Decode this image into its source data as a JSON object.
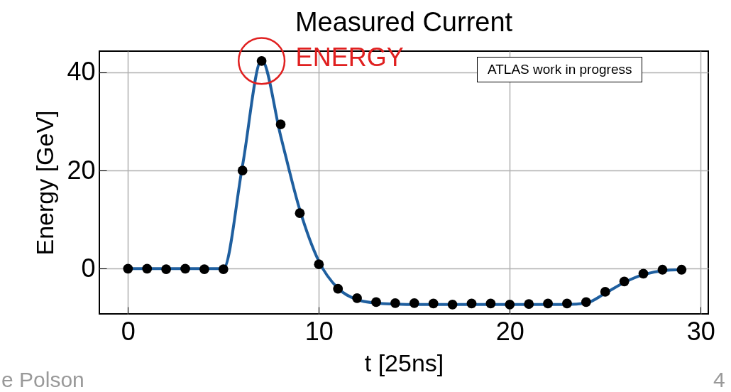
{
  "chart_data": {
    "type": "scatter",
    "title": "Measured Current",
    "xlabel": "t [25ns]",
    "ylabel": "Energy [GeV]",
    "x": [
      0,
      1,
      2,
      3,
      4,
      5,
      6,
      7,
      8,
      9,
      10,
      11,
      12,
      13,
      14,
      15,
      16,
      17,
      18,
      19,
      20,
      21,
      22,
      23,
      24,
      25,
      26,
      27,
      28,
      29
    ],
    "xlim": [
      -1.5,
      30.4
    ],
    "ylim": [
      -9.2,
      44.3
    ],
    "xticks": [
      0,
      10,
      20,
      30
    ],
    "yticks": [
      0,
      20,
      40
    ],
    "grid": true,
    "series": [
      {
        "type": "line",
        "color": "#1f5f9f",
        "x": [
          0,
          1,
          2,
          3,
          4,
          5,
          6,
          7,
          8,
          9,
          10,
          11,
          12,
          13,
          14,
          15,
          16,
          17,
          18,
          19,
          20,
          21,
          22,
          23,
          24,
          25,
          26,
          27,
          28,
          29
        ],
        "values": [
          0,
          0,
          0,
          0,
          0,
          0,
          21,
          42.5,
          27,
          12,
          1.5,
          -4,
          -6.3,
          -7,
          -7.2,
          -7.3,
          -7.3,
          -7.3,
          -7.3,
          -7.3,
          -7.3,
          -7.3,
          -7.3,
          -7.3,
          -7,
          -5,
          -2.8,
          -1.2,
          -0.4,
          -0.2
        ]
      },
      {
        "color": "#000000",
        "marker": "circle",
        "values": [
          0,
          0,
          -0.1,
          0,
          -0.1,
          -0.1,
          20,
          42.3,
          29.4,
          11.3,
          0.9,
          -4.1,
          -6,
          -6.8,
          -7,
          -7,
          -7.1,
          -7.3,
          -7.1,
          -7.1,
          -7.3,
          -7.2,
          -7.1,
          -7.1,
          -6.8,
          -4.7,
          -2.6,
          -1,
          -0.2,
          -0.2
        ]
      }
    ],
    "annotations": [
      {
        "text": "ENERGY",
        "x": 7,
        "y": 42.3
      },
      "ATLAS work in progress",
      "e Polson",
      "4"
    ]
  }
}
